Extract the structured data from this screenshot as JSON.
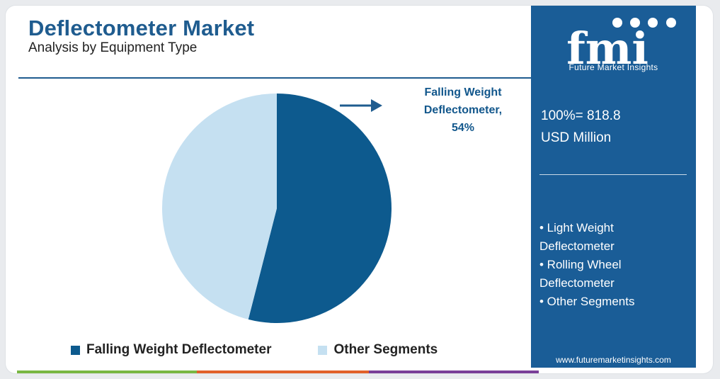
{
  "header": {
    "title": "Deflectometer Market",
    "subtitle": "Analysis by Equipment Type"
  },
  "chart_data": {
    "type": "pie",
    "title": "Deflectometer Market",
    "subtitle": "Analysis by Equipment Type",
    "slices": [
      {
        "label": "Falling Weight Deflectometer",
        "value": 54,
        "color": "#0d5a8e"
      },
      {
        "label": "Other Segments",
        "value": 46,
        "color": "#c5e0f1"
      }
    ],
    "annotation": {
      "lines": [
        "Falling Weight",
        "Deflectometer,",
        "54%"
      ]
    },
    "legend_position": "bottom"
  },
  "legend": {
    "items": [
      {
        "label": "Falling Weight Deflectometer",
        "color": "#0d5a8e"
      },
      {
        "label": "Other Segments",
        "color": "#c5e0f1"
      }
    ]
  },
  "panel": {
    "logo_text": "fmi",
    "logo_caption": "Future Market Insights",
    "total_line1": "100%= 818.8",
    "total_line2": "USD Million",
    "other_segments": [
      "• Light Weight",
      "Deflectometer",
      "• Rolling Wheel",
      "Deflectometer",
      "• Other Segments"
    ],
    "website": "www.futuremarketinsights.com",
    "background_color": "#1a5d97"
  },
  "bottom_bars": [
    "#79b743",
    "#e2612a",
    "#7a3f98"
  ]
}
